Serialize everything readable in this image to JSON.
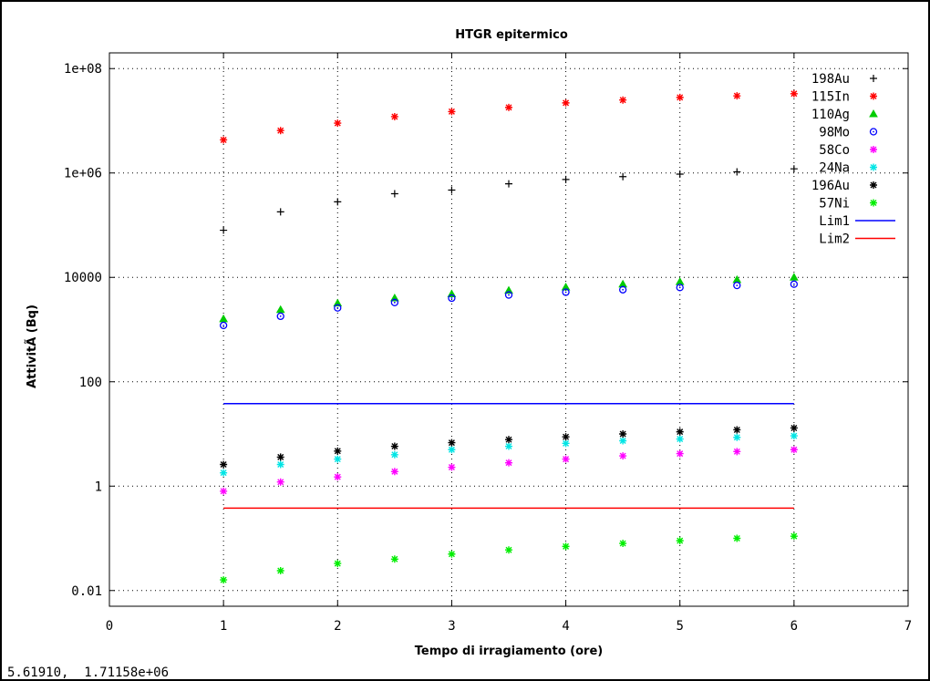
{
  "status_readout": "5.61910,  1.71158e+06",
  "chart_data": {
    "type": "scatter",
    "title": "HTGR epitermico",
    "xlabel": "Tempo di irragiamento (ore)",
    "ylabel": "AttivitÃ  (Bq)",
    "xlim": [
      0,
      7
    ],
    "ylim": [
      0.005,
      200000000
    ],
    "yscale": "log",
    "grid": true,
    "legend_position": "top-right",
    "x_ticks": [
      {
        "value": 0,
        "label": "0"
      },
      {
        "value": 1,
        "label": "1"
      },
      {
        "value": 2,
        "label": "2"
      },
      {
        "value": 3,
        "label": "3"
      },
      {
        "value": 4,
        "label": "4"
      },
      {
        "value": 5,
        "label": "5"
      },
      {
        "value": 6,
        "label": "6"
      },
      {
        "value": 7,
        "label": "7"
      }
    ],
    "y_ticks": [
      {
        "value": 0.01,
        "label": "0.01"
      },
      {
        "value": 1,
        "label": "1"
      },
      {
        "value": 100,
        "label": "100"
      },
      {
        "value": 10000,
        "label": "10000"
      },
      {
        "value": 1000000,
        "label": "1e+06"
      },
      {
        "value": 100000000,
        "label": "1e+08"
      }
    ],
    "x": [
      1,
      1.5,
      2,
      2.5,
      3,
      3.5,
      4,
      4.5,
      5,
      5.5,
      6
    ],
    "series": [
      {
        "name": "198Au",
        "marker": "plus",
        "color": "#000000",
        "values": [
          80000,
          180000,
          280000,
          400000,
          470000,
          620000,
          750000,
          850000,
          950000,
          1050000,
          1200000
        ]
      },
      {
        "name": "115In",
        "marker": "asterisk",
        "color": "#ff0000",
        "values": [
          4300000,
          6500000,
          9000000,
          12000000,
          15000000,
          18000000,
          22000000,
          25000000,
          28000000,
          30000000,
          33000000
        ]
      },
      {
        "name": "110Ag",
        "marker": "triangle",
        "color": "#00cc00",
        "values": [
          1600,
          2400,
          3200,
          4000,
          4800,
          5600,
          6500,
          7400,
          8200,
          9000,
          10000
        ]
      },
      {
        "name": "98Mo",
        "marker": "circle",
        "color": "#0000ff",
        "values": [
          1200,
          1800,
          2600,
          3300,
          4000,
          4600,
          5200,
          5800,
          6400,
          7000,
          7400
        ]
      },
      {
        "name": "58Co",
        "marker": "asterisk",
        "color": "#ff00ff",
        "values": [
          0.8,
          1.2,
          1.5,
          1.9,
          2.3,
          2.8,
          3.3,
          3.8,
          4.2,
          4.6,
          5.0
        ]
      },
      {
        "name": "24Na",
        "marker": "asterisk",
        "color": "#00e5e5",
        "values": [
          1.8,
          2.6,
          3.3,
          4.0,
          5.0,
          5.8,
          6.6,
          7.4,
          8.0,
          8.6,
          9.2
        ]
      },
      {
        "name": "196Au",
        "marker": "asterisk",
        "color": "#000000",
        "values": [
          2.6,
          3.6,
          4.7,
          5.8,
          6.8,
          7.8,
          8.8,
          10,
          11,
          12,
          13
        ]
      },
      {
        "name": "57Ni",
        "marker": "asterisk",
        "color": "#00ee00",
        "values": [
          0.016,
          0.024,
          0.033,
          0.04,
          0.05,
          0.06,
          0.07,
          0.08,
          0.09,
          0.1,
          0.11
        ]
      },
      {
        "name": "Lim1",
        "marker": "line",
        "color": "#0000ff",
        "values": [
          38,
          38,
          38,
          38,
          38,
          38,
          38,
          38,
          38,
          38,
          38
        ]
      },
      {
        "name": "Lim2",
        "marker": "line",
        "color": "#ff0000",
        "values": [
          0.38,
          0.38,
          0.38,
          0.38,
          0.38,
          0.38,
          0.38,
          0.38,
          0.38,
          0.38,
          0.38
        ]
      }
    ]
  }
}
